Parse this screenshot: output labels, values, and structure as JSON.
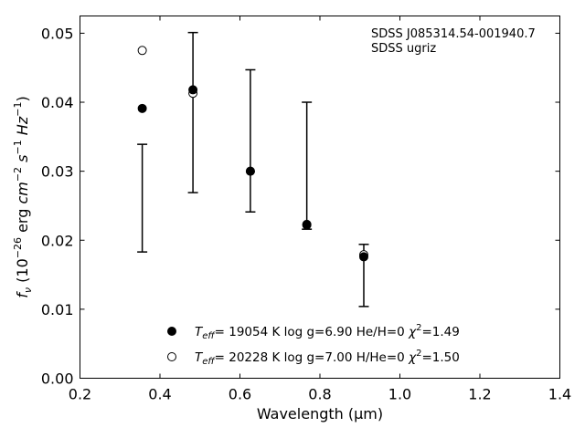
{
  "chart_data": {
    "type": "scatter",
    "title": "",
    "xlabel": "Wavelength (μm)",
    "ylabel": "f_ν (10^-26 erg cm^-2 s^-1 Hz^-1)",
    "xlim": [
      0.2,
      1.4
    ],
    "ylim": [
      0.0,
      0.0525
    ],
    "xticks": [
      0.2,
      0.4,
      0.6,
      0.8,
      1.0,
      1.2,
      1.4
    ],
    "xtick_labels": [
      "0.2",
      "0.4",
      "0.6",
      "0.8",
      "1.0",
      "1.2",
      "1.4"
    ],
    "yticks": [
      0.0,
      0.01,
      0.02,
      0.03,
      0.04,
      0.05
    ],
    "ytick_labels": [
      "0.00",
      "0.01",
      "0.02",
      "0.03",
      "0.04",
      "0.05"
    ],
    "grid": false,
    "legend_placement": "bottom-center",
    "annotations": [
      "SDSS J085314.54-001940.7",
      "SDSS ugriz"
    ],
    "observed": {
      "x": [
        0.3557,
        0.4825,
        0.6261,
        0.7672,
        0.9097
      ],
      "y": [
        0.0261,
        0.0385,
        0.0344,
        0.0308,
        0.0149
      ],
      "yerr": [
        0.0078,
        0.0116,
        0.0103,
        0.0092,
        0.0045
      ]
    },
    "series": [
      {
        "name": "T_eff= 19054 K  log g=6.90  He/H=0  χ²=1.49",
        "marker": "filled-circle",
        "x": [
          0.3557,
          0.4825,
          0.6261,
          0.7672,
          0.9097
        ],
        "y": [
          0.0391,
          0.0418,
          0.03,
          0.0223,
          0.0176
        ]
      },
      {
        "name": "T_eff= 20228 K  log g=7.00  H/He=0  χ²=1.50",
        "marker": "open-circle",
        "x": [
          0.3557,
          0.4825,
          0.6261,
          0.7672,
          0.9097
        ],
        "y": [
          0.0475,
          0.0413,
          0.03,
          0.0222,
          0.0179
        ]
      }
    ]
  }
}
